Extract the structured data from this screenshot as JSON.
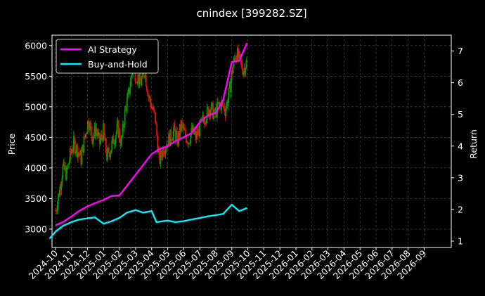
{
  "chart_data": {
    "type": "line",
    "title": "cnindex [399282.SZ]",
    "ylabel_left": "Price",
    "ylabel_right": "Return",
    "xlabel": "",
    "background": "#000000",
    "grid": true,
    "legend_position": "top-left",
    "x_ticks": [
      "2024-10",
      "2024-11",
      "2024-12",
      "2025-01",
      "2025-02",
      "2025-03",
      "2025-04",
      "2025-05",
      "2025-06",
      "2025-07",
      "2025-08",
      "2025-09",
      "2025-10",
      "2025-11",
      "2025-12",
      "2026-01",
      "2026-02",
      "2026-03",
      "2026-04",
      "2026-05",
      "2026-06",
      "2026-07",
      "2026-08",
      "2026-09"
    ],
    "y_left_ticks": [
      "3000",
      "3500",
      "4000",
      "4500",
      "5000",
      "5500",
      "6000"
    ],
    "y_left_range": [
      2700,
      6170
    ],
    "y_right_ticks": [
      "1",
      "2",
      "3",
      "4",
      "5",
      "6",
      "7"
    ],
    "y_right_range": [
      0.8,
      7.5
    ],
    "candlestick": {
      "name": "Price",
      "up_color": "#00a000",
      "down_color": "#e01010",
      "close_points": [
        [
          "2024-10-01",
          3300
        ],
        [
          "2024-10-08",
          3600
        ],
        [
          "2024-10-15",
          4000
        ],
        [
          "2024-10-22",
          3900
        ],
        [
          "2024-10-29",
          4200
        ],
        [
          "2024-11-05",
          4400
        ],
        [
          "2024-11-12",
          4300
        ],
        [
          "2024-11-19",
          4150
        ],
        [
          "2024-11-26",
          4500
        ],
        [
          "2024-12-03",
          4800
        ],
        [
          "2024-12-10",
          4500
        ],
        [
          "2024-12-17",
          4650
        ],
        [
          "2024-12-24",
          4400
        ],
        [
          "2024-12-31",
          4600
        ],
        [
          "2025-01-07",
          4200
        ],
        [
          "2025-01-14",
          4300
        ],
        [
          "2025-01-21",
          4500
        ],
        [
          "2025-01-28",
          4650
        ],
        [
          "2025-02-04",
          4400
        ],
        [
          "2025-02-11",
          4900
        ],
        [
          "2025-02-18",
          5200
        ],
        [
          "2025-02-25",
          5600
        ],
        [
          "2025-03-04",
          5500
        ],
        [
          "2025-03-11",
          5400
        ],
        [
          "2025-03-18",
          5600
        ],
        [
          "2025-03-25",
          5200
        ],
        [
          "2025-04-01",
          5000
        ],
        [
          "2025-04-08",
          4800
        ],
        [
          "2025-04-15",
          4100
        ],
        [
          "2025-04-22",
          4300
        ],
        [
          "2025-04-29",
          4400
        ],
        [
          "2025-05-06",
          4500
        ],
        [
          "2025-05-13",
          4600
        ],
        [
          "2025-05-20",
          4450
        ],
        [
          "2025-05-27",
          4700
        ],
        [
          "2025-06-03",
          4550
        ],
        [
          "2025-06-10",
          4450
        ],
        [
          "2025-06-17",
          4600
        ],
        [
          "2025-06-24",
          4500
        ],
        [
          "2025-07-01",
          4650
        ],
        [
          "2025-07-08",
          4800
        ],
        [
          "2025-07-15",
          4900
        ],
        [
          "2025-07-22",
          5000
        ],
        [
          "2025-07-29",
          4850
        ],
        [
          "2025-08-05",
          5000
        ],
        [
          "2025-08-12",
          5050
        ],
        [
          "2025-08-19",
          4950
        ],
        [
          "2025-08-26",
          5200
        ],
        [
          "2025-09-02",
          5600
        ],
        [
          "2025-09-09",
          5900
        ],
        [
          "2025-09-16",
          5750
        ],
        [
          "2025-09-23",
          5600
        ],
        [
          "2025-09-30",
          5750
        ]
      ]
    },
    "series": [
      {
        "name": "AI Strategy",
        "color": "#ff00ff",
        "axis": "right",
        "points": [
          [
            "2024-10-01",
            1.5
          ],
          [
            "2024-10-15",
            1.6
          ],
          [
            "2024-11-01",
            1.78
          ],
          [
            "2024-11-15",
            1.95
          ],
          [
            "2024-12-01",
            2.1
          ],
          [
            "2024-12-15",
            2.2
          ],
          [
            "2025-01-01",
            2.3
          ],
          [
            "2025-01-15",
            2.42
          ],
          [
            "2025-02-01",
            2.45
          ],
          [
            "2025-02-15",
            2.75
          ],
          [
            "2025-03-01",
            3.1
          ],
          [
            "2025-03-15",
            3.4
          ],
          [
            "2025-04-01",
            3.75
          ],
          [
            "2025-04-15",
            3.9
          ],
          [
            "2025-05-01",
            4.0
          ],
          [
            "2025-05-15",
            4.15
          ],
          [
            "2025-06-01",
            4.28
          ],
          [
            "2025-06-15",
            4.4
          ],
          [
            "2025-07-01",
            4.75
          ],
          [
            "2025-07-15",
            4.95
          ],
          [
            "2025-08-01",
            5.05
          ],
          [
            "2025-08-15",
            5.45
          ],
          [
            "2025-09-01",
            6.65
          ],
          [
            "2025-09-15",
            6.7
          ],
          [
            "2025-09-30",
            7.25
          ]
        ]
      },
      {
        "name": "Buy-and-Hold",
        "color": "#00eeff",
        "axis": "right",
        "points": [
          [
            "2024-09-20",
            1.08
          ],
          [
            "2024-10-01",
            1.3
          ],
          [
            "2024-10-15",
            1.48
          ],
          [
            "2024-11-01",
            1.6
          ],
          [
            "2024-11-15",
            1.68
          ],
          [
            "2024-12-01",
            1.72
          ],
          [
            "2024-12-15",
            1.75
          ],
          [
            "2025-01-01",
            1.55
          ],
          [
            "2025-01-15",
            1.62
          ],
          [
            "2025-02-01",
            1.74
          ],
          [
            "2025-02-15",
            1.9
          ],
          [
            "2025-03-01",
            1.98
          ],
          [
            "2025-03-15",
            1.9
          ],
          [
            "2025-04-01",
            1.95
          ],
          [
            "2025-04-10",
            1.6
          ],
          [
            "2025-05-01",
            1.65
          ],
          [
            "2025-05-15",
            1.6
          ],
          [
            "2025-06-01",
            1.63
          ],
          [
            "2025-06-15",
            1.68
          ],
          [
            "2025-07-01",
            1.73
          ],
          [
            "2025-07-15",
            1.78
          ],
          [
            "2025-08-01",
            1.82
          ],
          [
            "2025-08-15",
            1.86
          ],
          [
            "2025-09-01",
            2.15
          ],
          [
            "2025-09-15",
            1.95
          ],
          [
            "2025-09-30",
            2.05
          ]
        ]
      }
    ]
  }
}
